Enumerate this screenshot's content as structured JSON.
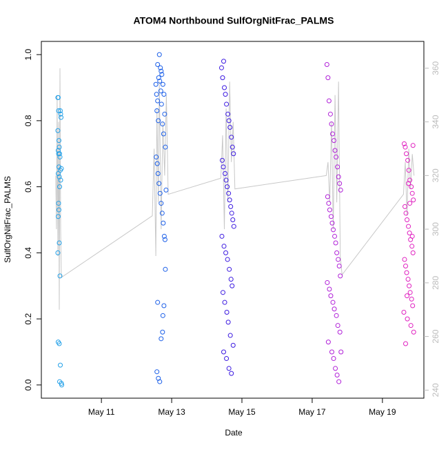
{
  "chart_data": {
    "type": "scatter",
    "title": "ATOM4 Northbound SulfOrgNitFrac_PALMS",
    "x_label": "Date",
    "y_label": "SulfOrgNitFrac_PALMS",
    "xlim": [
      9.29,
      20.18
    ],
    "ylim": [
      -0.04,
      1.04
    ],
    "y2lim": [
      237,
      370
    ],
    "xticks": [
      {
        "value": 11,
        "label": "May 11"
      },
      {
        "value": 13,
        "label": "May 13"
      },
      {
        "value": 15,
        "label": "May 15"
      },
      {
        "value": 17,
        "label": "May 17"
      },
      {
        "value": 19,
        "label": "May 19"
      }
    ],
    "yticks": [
      {
        "value": 0,
        "label": "0.0"
      },
      {
        "value": 0.2,
        "label": "0.2"
      },
      {
        "value": 0.4,
        "label": "0.4"
      },
      {
        "value": 0.6,
        "label": "0.6"
      },
      {
        "value": 0.8,
        "label": "0.8"
      },
      {
        "value": 1,
        "label": "1.0"
      }
    ],
    "y2ticks": [
      240,
      260,
      280,
      300,
      320,
      340,
      360
    ],
    "series": [
      {
        "type": "line",
        "axis": "y2",
        "color": "#c8c8c8",
        "x": [
          9.7,
          9.72,
          9.74,
          9.76,
          9.78,
          9.8,
          9.82,
          9.84,
          9.86,
          12.45,
          12.5,
          12.55,
          12.58,
          12.62,
          12.65,
          12.7,
          12.75,
          12.8,
          12.85,
          12.9,
          14.4,
          14.45,
          14.5,
          14.55,
          14.6,
          14.65,
          14.7,
          14.75,
          14.8,
          17.4,
          17.45,
          17.5,
          17.55,
          17.6,
          17.65,
          17.7,
          17.75,
          17.8,
          17.85,
          19.6,
          19.65,
          19.7,
          19.75,
          19.8,
          19.85,
          19.9
        ],
        "values": [
          320,
          300,
          350,
          290,
          340,
          270,
          360,
          300,
          282,
          305,
          330,
          290,
          345,
          310,
          355,
          300,
          340,
          320,
          350,
          313,
          319,
          335,
          300,
          345,
          310,
          355,
          325,
          340,
          315,
          320,
          325,
          310,
          340,
          300,
          350,
          310,
          355,
          290,
          283,
          313,
          325,
          305,
          330,
          315,
          328,
          320
        ]
      },
      {
        "color": "#22a0e8",
        "x": [
          9.76,
          9.77,
          9.78,
          9.76,
          9.79,
          9.8,
          9.77,
          9.81,
          9.78,
          9.82,
          9.79,
          9.83,
          9.77,
          9.8,
          9.84,
          9.81,
          9.78,
          9.79,
          9.77,
          9.8,
          9.76,
          9.82,
          9.77,
          9.8,
          9.83,
          9.81,
          9.86,
          9.87,
          9.85,
          9.83,
          9.84,
          9.86
        ],
        "values": [
          0.87,
          0.87,
          0.83,
          0.77,
          0.74,
          0.72,
          0.71,
          0.7,
          0.7,
          0.69,
          0.66,
          0.65,
          0.64,
          0.63,
          0.62,
          0.6,
          0.55,
          0.53,
          0.51,
          0.43,
          0.4,
          0.33,
          0.13,
          0.125,
          0.06,
          0.01,
          0.005,
          0,
          0.81,
          0.83,
          0.82,
          0.655
        ]
      },
      {
        "color": "#1a5ee8",
        "x": [
          12.55,
          12.57,
          12.6,
          12.58,
          12.62,
          12.65,
          12.6,
          12.68,
          12.7,
          12.63,
          12.72,
          12.66,
          12.75,
          12.69,
          12.78,
          12.71,
          12.8,
          12.74,
          12.77,
          12.82,
          12.56,
          12.59,
          12.61,
          12.64,
          12.67,
          12.7,
          12.73,
          12.76,
          12.79,
          12.81,
          12.58,
          12.62,
          12.66,
          12.7,
          12.74,
          12.78,
          12.82,
          12.84,
          12.6,
          12.75
        ],
        "values": [
          0.91,
          0.88,
          0.86,
          0.83,
          0.8,
          1.0,
          0.97,
          0.96,
          0.95,
          0.93,
          0.94,
          0.92,
          0.91,
          0.89,
          0.88,
          0.85,
          0.82,
          0.79,
          0.76,
          0.72,
          0.69,
          0.67,
          0.64,
          0.61,
          0.58,
          0.55,
          0.52,
          0.49,
          0.45,
          0.44,
          0.04,
          0.02,
          0.01,
          0.14,
          0.16,
          0.24,
          0.35,
          0.59,
          0.25,
          0.21
        ]
      },
      {
        "color": "#3a18e0",
        "x": [
          14.42,
          14.45,
          14.48,
          14.5,
          14.53,
          14.56,
          14.6,
          14.63,
          14.66,
          14.7,
          14.73,
          14.76,
          14.44,
          14.47,
          14.52,
          14.55,
          14.58,
          14.62,
          14.65,
          14.68,
          14.71,
          14.74,
          14.77,
          14.43,
          14.49,
          14.54,
          14.59,
          14.64,
          14.69,
          14.72,
          14.46,
          14.51,
          14.57,
          14.61,
          14.67,
          14.75,
          14.48,
          14.56,
          14.63,
          14.7
        ],
        "values": [
          0.96,
          0.93,
          0.98,
          0.9,
          0.88,
          0.85,
          0.82,
          0.8,
          0.78,
          0.75,
          0.72,
          0.7,
          0.68,
          0.66,
          0.64,
          0.62,
          0.6,
          0.58,
          0.56,
          0.54,
          0.52,
          0.5,
          0.48,
          0.45,
          0.42,
          0.4,
          0.38,
          0.35,
          0.32,
          0.3,
          0.28,
          0.25,
          0.22,
          0.19,
          0.15,
          0.12,
          0.1,
          0.08,
          0.05,
          0.035
        ]
      },
      {
        "color": "#b020d8",
        "x": [
          17.42,
          17.45,
          17.48,
          17.52,
          17.55,
          17.58,
          17.62,
          17.65,
          17.68,
          17.72,
          17.75,
          17.78,
          17.81,
          17.44,
          17.47,
          17.5,
          17.54,
          17.57,
          17.6,
          17.64,
          17.67,
          17.7,
          17.74,
          17.77,
          17.8,
          17.43,
          17.49,
          17.53,
          17.59,
          17.63,
          17.69,
          17.73,
          17.79,
          17.46,
          17.56,
          17.61,
          17.66,
          17.71,
          17.76,
          17.82
        ],
        "values": [
          0.97,
          0.93,
          0.86,
          0.82,
          0.79,
          0.76,
          0.74,
          0.71,
          0.69,
          0.66,
          0.63,
          0.61,
          0.59,
          0.57,
          0.55,
          0.53,
          0.51,
          0.49,
          0.47,
          0.45,
          0.43,
          0.4,
          0.38,
          0.36,
          0.33,
          0.31,
          0.29,
          0.27,
          0.25,
          0.23,
          0.21,
          0.18,
          0.16,
          0.13,
          0.1,
          0.08,
          0.05,
          0.03,
          0.01,
          0.1
        ]
      },
      {
        "color": "#e020c0",
        "x": [
          19.62,
          19.65,
          19.68,
          19.72,
          19.75,
          19.78,
          19.82,
          19.85,
          19.88,
          19.64,
          19.67,
          19.7,
          19.74,
          19.77,
          19.8,
          19.84,
          19.87,
          19.63,
          19.66,
          19.69,
          19.73,
          19.76,
          19.79,
          19.83,
          19.86,
          19.61,
          19.71,
          19.81,
          19.89,
          19.66,
          19.74,
          19.78,
          19.85,
          19.7,
          19.87
        ],
        "values": [
          0.73,
          0.72,
          0.7,
          0.68,
          0.65,
          0.62,
          0.6,
          0.58,
          0.56,
          0.54,
          0.52,
          0.5,
          0.48,
          0.46,
          0.44,
          0.42,
          0.4,
          0.38,
          0.36,
          0.34,
          0.32,
          0.3,
          0.28,
          0.26,
          0.24,
          0.22,
          0.2,
          0.18,
          0.16,
          0.125,
          0.61,
          0.55,
          0.45,
          0.27,
          0.725
        ]
      }
    ]
  }
}
